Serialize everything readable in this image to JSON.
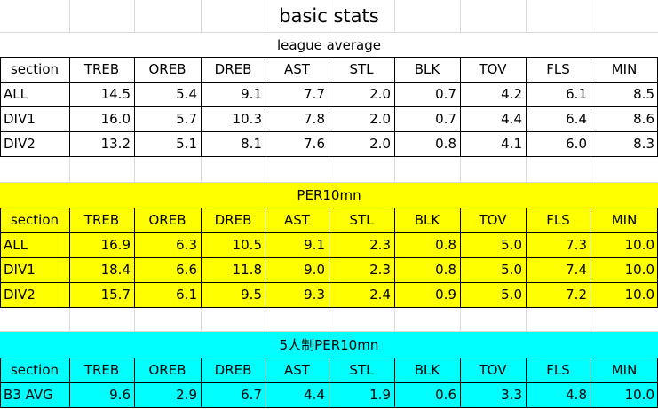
{
  "title": "basic stats",
  "sections": [
    {
      "id": "league",
      "heading": "league average",
      "color": "#ffffff",
      "columns": [
        "section",
        "TREB",
        "OREB",
        "DREB",
        "AST",
        "STL",
        "BLK",
        "TOV",
        "FLS",
        "MIN"
      ],
      "rows": [
        [
          "ALL",
          "14.5",
          "5.4",
          "9.1",
          "7.7",
          "2.0",
          "0.7",
          "4.2",
          "6.1",
          "8.5"
        ],
        [
          "DIV1",
          "16.0",
          "5.7",
          "10.3",
          "7.8",
          "2.0",
          "0.7",
          "4.4",
          "6.4",
          "8.6"
        ],
        [
          "DIV2",
          "13.2",
          "5.1",
          "8.1",
          "7.6",
          "2.0",
          "0.8",
          "4.1",
          "6.0",
          "8.3"
        ]
      ]
    },
    {
      "id": "per10",
      "heading": "PER10mn",
      "color": "#ffff00",
      "columns": [
        "section",
        "TREB",
        "OREB",
        "DREB",
        "AST",
        "STL",
        "BLK",
        "TOV",
        "FLS",
        "MIN"
      ],
      "rows": [
        [
          "ALL",
          "16.9",
          "6.3",
          "10.5",
          "9.1",
          "2.3",
          "0.8",
          "5.0",
          "7.3",
          "10.0"
        ],
        [
          "DIV1",
          "18.4",
          "6.6",
          "11.8",
          "9.0",
          "2.3",
          "0.8",
          "5.0",
          "7.4",
          "10.0"
        ],
        [
          "DIV2",
          "15.7",
          "6.1",
          "9.5",
          "9.3",
          "2.4",
          "0.9",
          "5.0",
          "7.2",
          "10.0"
        ]
      ]
    },
    {
      "id": "five",
      "heading": "5人制PER10mn",
      "color": "#00ffff",
      "columns": [
        "section",
        "TREB",
        "OREB",
        "DREB",
        "AST",
        "STL",
        "BLK",
        "TOV",
        "FLS",
        "MIN"
      ],
      "rows": [
        [
          "B3 AVG",
          "9.6",
          "2.9",
          "6.7",
          "4.4",
          "1.9",
          "0.6",
          "3.3",
          "4.8",
          "10.0"
        ]
      ]
    }
  ]
}
